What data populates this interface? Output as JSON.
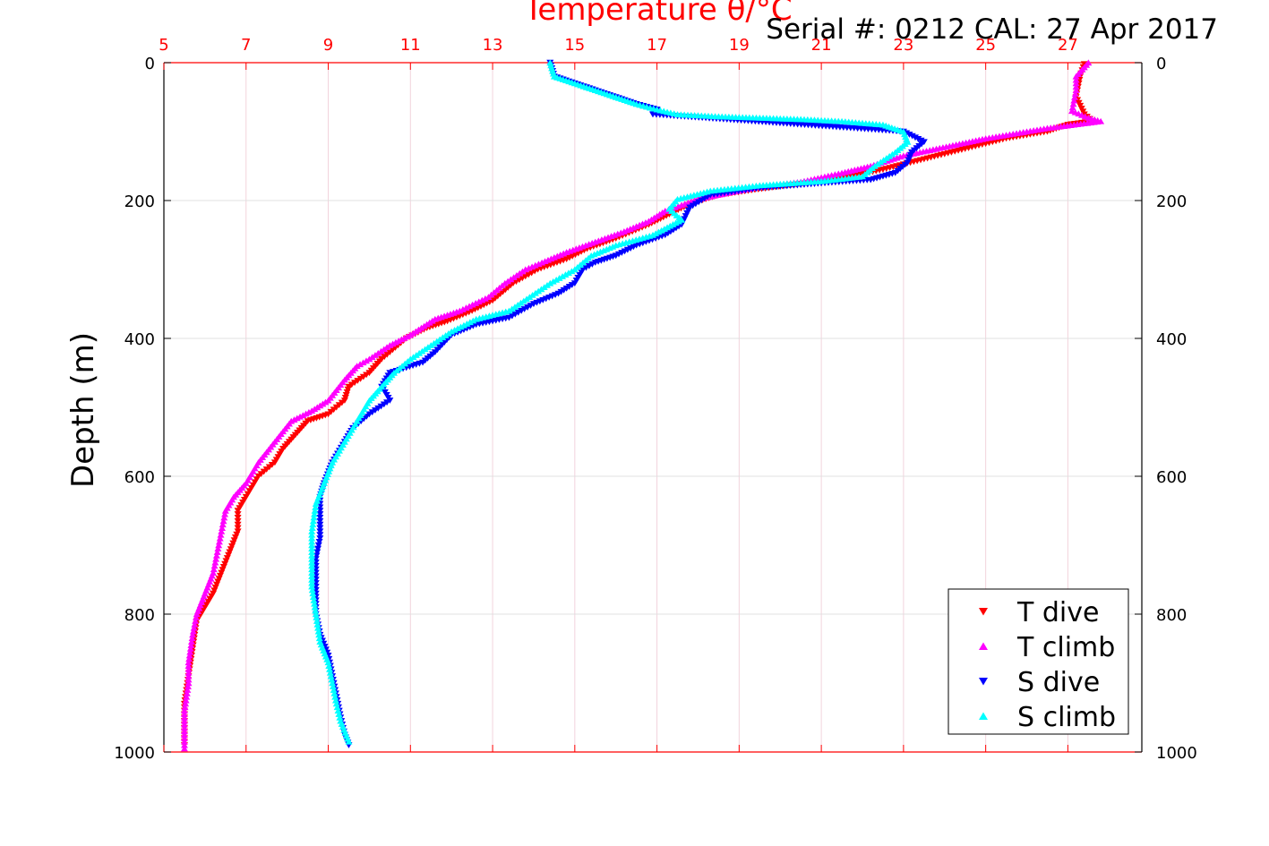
{
  "chart_data": {
    "type": "scatter",
    "title": "Temperature θ/°C",
    "annotation": "Serial #: 0212  CAL: 27 Apr 2017",
    "xlabel": "Temperature θ/°C",
    "ylabel": "Depth (m)",
    "xlim": [
      5,
      28.8
    ],
    "ylim": [
      1000,
      0
    ],
    "x_ticks": [
      "5",
      "7",
      "9",
      "11",
      "13",
      "15",
      "17",
      "19",
      "21",
      "23",
      "25",
      "27"
    ],
    "y_ticks": [
      "0",
      "200",
      "400",
      "600",
      "800",
      "1000"
    ],
    "grid": true,
    "legend_position": "bottom-right",
    "colors": {
      "T dive": "#ff0000",
      "T climb": "#ff00ff",
      "S dive": "#0000ff",
      "S climb": "#00ffff",
      "axis_top": "#ff0000"
    },
    "series": [
      {
        "name": "T dive",
        "marker": "triangle-down",
        "color": "#ff0000",
        "points": [
          [
            27.4,
            2
          ],
          [
            27.3,
            20
          ],
          [
            27.2,
            50
          ],
          [
            27.4,
            75
          ],
          [
            27.6,
            85
          ],
          [
            27.0,
            90
          ],
          [
            26.5,
            100
          ],
          [
            25.5,
            110
          ],
          [
            24.5,
            125
          ],
          [
            23.5,
            140
          ],
          [
            22.5,
            155
          ],
          [
            21.5,
            168
          ],
          [
            20.3,
            177
          ],
          [
            19.3,
            185
          ],
          [
            18.5,
            192
          ],
          [
            17.8,
            205
          ],
          [
            17.3,
            220
          ],
          [
            16.8,
            235
          ],
          [
            16.0,
            255
          ],
          [
            15.3,
            270
          ],
          [
            14.8,
            285
          ],
          [
            14.1,
            300
          ],
          [
            13.5,
            320
          ],
          [
            13.0,
            345
          ],
          [
            12.5,
            360
          ],
          [
            11.9,
            375
          ],
          [
            11.4,
            385
          ],
          [
            10.9,
            400
          ],
          [
            10.5,
            420
          ],
          [
            10.3,
            430
          ],
          [
            10.0,
            450
          ],
          [
            9.5,
            470
          ],
          [
            9.4,
            490
          ],
          [
            9.0,
            510
          ],
          [
            8.5,
            520
          ],
          [
            8.2,
            540
          ],
          [
            7.9,
            560
          ],
          [
            7.7,
            580
          ],
          [
            7.3,
            600
          ],
          [
            7.0,
            630
          ],
          [
            6.8,
            650
          ],
          [
            6.8,
            680
          ],
          [
            6.6,
            710
          ],
          [
            6.4,
            740
          ],
          [
            6.2,
            770
          ],
          [
            6.0,
            790
          ],
          [
            5.8,
            810
          ],
          [
            5.7,
            850
          ],
          [
            5.6,
            890
          ],
          [
            5.5,
            930
          ],
          [
            5.5,
            960
          ],
          [
            5.5,
            990
          ]
        ]
      },
      {
        "name": "T climb",
        "marker": "triangle-up",
        "color": "#ff00ff",
        "points": [
          [
            27.5,
            0
          ],
          [
            27.2,
            20
          ],
          [
            27.2,
            40
          ],
          [
            27.1,
            70
          ],
          [
            27.5,
            80
          ],
          [
            27.8,
            85
          ],
          [
            26.5,
            95
          ],
          [
            25.0,
            110
          ],
          [
            23.8,
            125
          ],
          [
            23.0,
            135
          ],
          [
            22.2,
            150
          ],
          [
            21.5,
            160
          ],
          [
            20.5,
            173
          ],
          [
            19.5,
            180
          ],
          [
            18.8,
            188
          ],
          [
            18.0,
            198
          ],
          [
            17.2,
            215
          ],
          [
            16.8,
            230
          ],
          [
            16.2,
            245
          ],
          [
            15.5,
            260
          ],
          [
            14.8,
            275
          ],
          [
            14.2,
            290
          ],
          [
            13.8,
            300
          ],
          [
            13.3,
            320
          ],
          [
            12.9,
            340
          ],
          [
            12.2,
            360
          ],
          [
            11.6,
            372
          ],
          [
            11.0,
            395
          ],
          [
            10.5,
            410
          ],
          [
            10.0,
            430
          ],
          [
            9.7,
            440
          ],
          [
            9.4,
            460
          ],
          [
            9.0,
            490
          ],
          [
            8.6,
            505
          ],
          [
            8.1,
            520
          ],
          [
            7.7,
            550
          ],
          [
            7.3,
            580
          ],
          [
            7.0,
            610
          ],
          [
            6.7,
            630
          ],
          [
            6.5,
            650
          ],
          [
            6.4,
            680
          ],
          [
            6.3,
            710
          ],
          [
            6.2,
            740
          ],
          [
            6.0,
            770
          ],
          [
            5.8,
            800
          ],
          [
            5.7,
            830
          ],
          [
            5.6,
            870
          ],
          [
            5.6,
            900
          ],
          [
            5.5,
            940
          ],
          [
            5.5,
            970
          ],
          [
            5.5,
            995
          ]
        ]
      },
      {
        "name": "S dive",
        "marker": "triangle-down",
        "color": "#0000ff",
        "points": [
          [
            14.4,
            0
          ],
          [
            14.5,
            20
          ],
          [
            15.0,
            30
          ],
          [
            15.5,
            40
          ],
          [
            16.0,
            50
          ],
          [
            16.5,
            60
          ],
          [
            17.0,
            68
          ],
          [
            16.9,
            75
          ],
          [
            23.0,
            100
          ],
          [
            23.5,
            115
          ],
          [
            23.2,
            130
          ],
          [
            23.1,
            145
          ],
          [
            22.8,
            160
          ],
          [
            22.2,
            170
          ],
          [
            21.0,
            175
          ],
          [
            19.5,
            182
          ],
          [
            18.3,
            192
          ],
          [
            17.8,
            210
          ],
          [
            17.6,
            235
          ],
          [
            17.2,
            250
          ],
          [
            16.5,
            265
          ],
          [
            16.0,
            280
          ],
          [
            15.5,
            290
          ],
          [
            15.2,
            300
          ],
          [
            15.0,
            320
          ],
          [
            14.6,
            335
          ],
          [
            14.0,
            350
          ],
          [
            13.4,
            370
          ],
          [
            12.6,
            380
          ],
          [
            12.0,
            395
          ],
          [
            11.6,
            420
          ],
          [
            11.3,
            435
          ],
          [
            10.5,
            450
          ],
          [
            10.3,
            470
          ],
          [
            10.5,
            490
          ],
          [
            10.0,
            510
          ],
          [
            9.6,
            530
          ],
          [
            9.4,
            550
          ],
          [
            9.1,
            580
          ],
          [
            8.9,
            610
          ],
          [
            8.8,
            630
          ],
          [
            8.8,
            660
          ],
          [
            8.8,
            690
          ],
          [
            8.7,
            720
          ],
          [
            8.7,
            760
          ],
          [
            8.7,
            800
          ],
          [
            8.8,
            830
          ],
          [
            9.0,
            860
          ],
          [
            9.1,
            890
          ],
          [
            9.2,
            920
          ],
          [
            9.3,
            950
          ],
          [
            9.4,
            975
          ],
          [
            9.5,
            990
          ]
        ]
      },
      {
        "name": "S climb",
        "marker": "triangle-up",
        "color": "#00ffff",
        "points": [
          [
            14.4,
            0
          ],
          [
            14.5,
            20
          ],
          [
            15.0,
            30
          ],
          [
            15.5,
            40
          ],
          [
            16.0,
            50
          ],
          [
            16.5,
            60
          ],
          [
            17.0,
            68
          ],
          [
            17.5,
            75
          ],
          [
            18.5,
            78
          ],
          [
            19.5,
            80
          ],
          [
            20.5,
            82
          ],
          [
            21.5,
            85
          ],
          [
            22.5,
            90
          ],
          [
            23.0,
            100
          ],
          [
            23.1,
            115
          ],
          [
            22.8,
            130
          ],
          [
            22.3,
            150
          ],
          [
            22.0,
            165
          ],
          [
            21.0,
            172
          ],
          [
            19.5,
            178
          ],
          [
            18.3,
            186
          ],
          [
            17.5,
            198
          ],
          [
            17.3,
            212
          ],
          [
            17.6,
            228
          ],
          [
            16.9,
            250
          ],
          [
            16.0,
            265
          ],
          [
            15.4,
            280
          ],
          [
            15.0,
            300
          ],
          [
            14.4,
            320
          ],
          [
            13.9,
            340
          ],
          [
            13.4,
            360
          ],
          [
            12.6,
            372
          ],
          [
            12.0,
            390
          ],
          [
            11.5,
            410
          ],
          [
            11.0,
            430
          ],
          [
            10.6,
            450
          ],
          [
            10.3,
            470
          ],
          [
            10.0,
            490
          ],
          [
            9.7,
            520
          ],
          [
            9.4,
            550
          ],
          [
            9.1,
            580
          ],
          [
            8.9,
            610
          ],
          [
            8.7,
            640
          ],
          [
            8.6,
            680
          ],
          [
            8.6,
            720
          ],
          [
            8.6,
            760
          ],
          [
            8.7,
            800
          ],
          [
            8.8,
            840
          ],
          [
            9.0,
            870
          ],
          [
            9.1,
            900
          ],
          [
            9.2,
            930
          ],
          [
            9.3,
            955
          ],
          [
            9.5,
            985
          ]
        ]
      }
    ]
  }
}
